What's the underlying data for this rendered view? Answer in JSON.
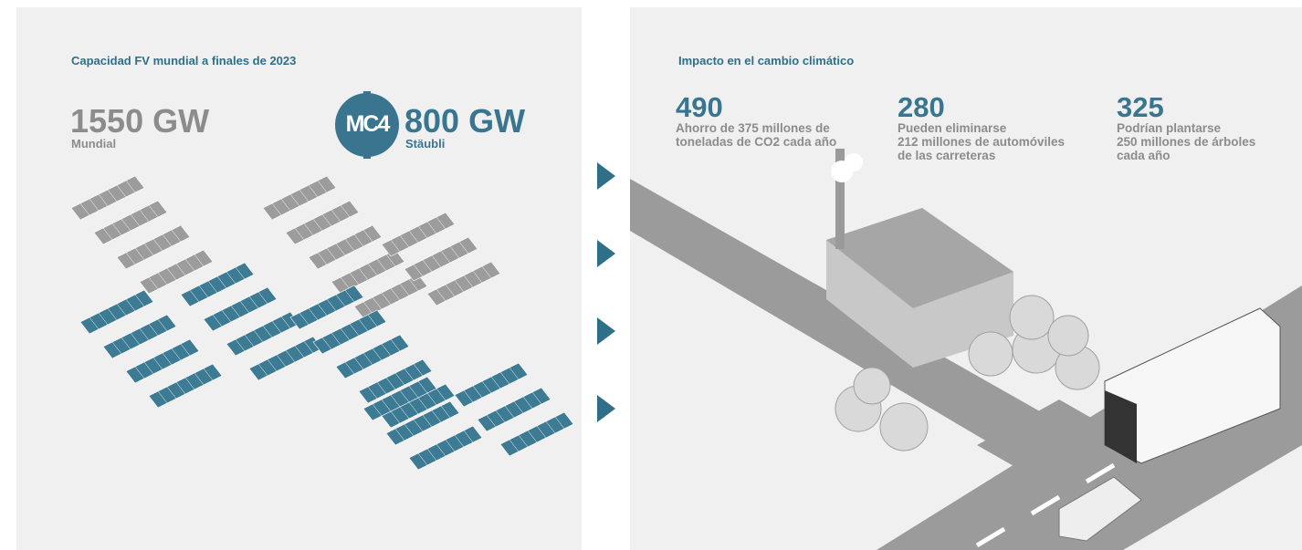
{
  "left": {
    "title": "Capacidad FV mundial a finales de 2023",
    "stats": [
      {
        "value": "1550 GW",
        "label": "Mundial"
      },
      {
        "value": "800 GW",
        "label": "Stäubli"
      }
    ],
    "logo": "MC4"
  },
  "right": {
    "title": "Impacto en el cambio climático",
    "stats": [
      {
        "value": "490",
        "lines": [
          "Ahorro de 375 millones de",
          "toneladas de CO2 cada año"
        ]
      },
      {
        "value": "280",
        "lines": [
          "Pueden eliminarse",
          "212 millones de automóviles",
          "de las carreteras"
        ]
      },
      {
        "value": "325",
        "lines": [
          "Podrían plantarse",
          "250 millones de árboles",
          "cada año"
        ]
      }
    ]
  }
}
